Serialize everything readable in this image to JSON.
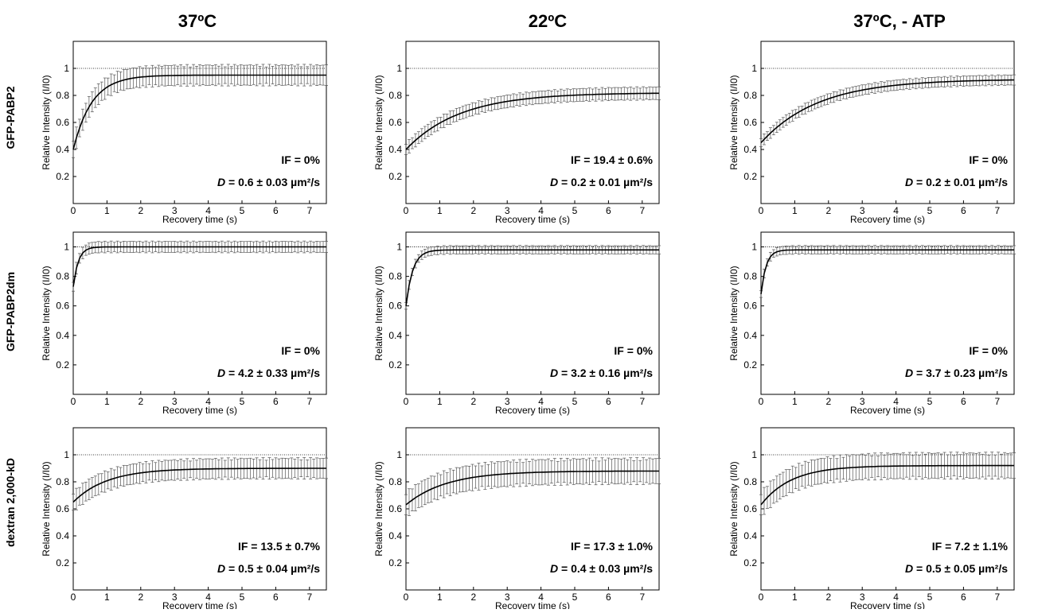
{
  "column_titles": [
    "37ºC",
    "22ºC",
    "37ºC, - ATP"
  ],
  "row_labels": [
    "GFP-PABP2",
    "GFP-PABP2dm",
    "dextran 2,000-kD"
  ],
  "colors": {
    "line": "#000000",
    "error_bar": "#555555",
    "reference_line": "#000000"
  },
  "chart_data": [
    {
      "type": "line",
      "row": 0,
      "col": 0,
      "xlabel": "Recovery time (s)",
      "ylabel": "Relative Intensity (I/I0)",
      "xlim": [
        0,
        7.5
      ],
      "ylim": [
        0,
        1.2
      ],
      "xticks": [
        "0",
        "1",
        "2",
        "3",
        "4",
        "5",
        "6",
        "7"
      ],
      "yticks": [
        "0.2",
        "0.4",
        "0.6",
        "0.8",
        "1"
      ],
      "reference_y": 1,
      "series": [
        {
          "start": 0.4,
          "plateau": 0.95,
          "tau": 0.55,
          "error": 0.08
        }
      ],
      "annotations": {
        "if_text": "IF = 0%",
        "d_prefix": "D",
        "d_text": " = 0.6 ± 0.03 µm²/s"
      }
    },
    {
      "type": "line",
      "row": 0,
      "col": 1,
      "xlabel": "Recovery time (s)",
      "ylabel": "Relative Intensity (I/I0)",
      "xlim": [
        0,
        7.5
      ],
      "ylim": [
        0,
        1.2
      ],
      "xticks": [
        "0",
        "1",
        "2",
        "3",
        "4",
        "5",
        "6",
        "7"
      ],
      "yticks": [
        "0.2",
        "0.4",
        "0.6",
        "0.8",
        "1"
      ],
      "reference_y": 1,
      "series": [
        {
          "start": 0.4,
          "plateau": 0.82,
          "tau": 1.6,
          "error": 0.05
        }
      ],
      "annotations": {
        "if_text": "IF = 19.4 ± 0.6%",
        "d_prefix": "D",
        "d_text": " = 0.2 ± 0.01 µm²/s"
      }
    },
    {
      "type": "line",
      "row": 0,
      "col": 2,
      "xlabel": "Recovery time (s)",
      "ylabel": "Relative Intensity (I/I0)",
      "xlim": [
        0,
        7.5
      ],
      "ylim": [
        0,
        1.2
      ],
      "xticks": [
        "0",
        "1",
        "2",
        "3",
        "4",
        "5",
        "6",
        "7"
      ],
      "yticks": [
        "0.2",
        "0.4",
        "0.6",
        "0.8",
        "1"
      ],
      "reference_y": 1,
      "series": [
        {
          "start": 0.45,
          "plateau": 0.92,
          "tau": 1.7,
          "error": 0.04
        }
      ],
      "annotations": {
        "if_text": "IF = 0%",
        "d_prefix": "D",
        "d_text": " = 0.2 ± 0.01 µm²/s"
      }
    },
    {
      "type": "line",
      "row": 1,
      "col": 0,
      "xlabel": "Recovery time (s)",
      "ylabel": "Relative Intensity (I/I0)",
      "xlim": [
        0,
        7.5
      ],
      "ylim": [
        0,
        1.1
      ],
      "xticks": [
        "0",
        "1",
        "2",
        "3",
        "4",
        "5",
        "6",
        "7"
      ],
      "yticks": [
        "0.2",
        "0.4",
        "0.6",
        "0.8",
        "1"
      ],
      "reference_y": 1,
      "series": [
        {
          "start": 0.73,
          "plateau": 1.0,
          "tau": 0.15,
          "error": 0.04
        }
      ],
      "annotations": {
        "if_text": "IF = 0%",
        "d_prefix": "D",
        "d_text": " = 4.2 ± 0.33 µm²/s"
      }
    },
    {
      "type": "line",
      "row": 1,
      "col": 1,
      "xlabel": "Recovery time (s)",
      "ylabel": "Relative Intensity (I/I0)",
      "xlim": [
        0,
        7.5
      ],
      "ylim": [
        0,
        1.1
      ],
      "xticks": [
        "0",
        "1",
        "2",
        "3",
        "4",
        "5",
        "6",
        "7"
      ],
      "yticks": [
        "0.2",
        "0.4",
        "0.6",
        "0.8",
        "1"
      ],
      "reference_y": 1,
      "series": [
        {
          "start": 0.6,
          "plateau": 0.98,
          "tau": 0.2,
          "error": 0.03
        }
      ],
      "annotations": {
        "if_text": "IF = 0%",
        "d_prefix": "D",
        "d_text": " = 3.2 ± 0.16 µm²/s"
      }
    },
    {
      "type": "line",
      "row": 1,
      "col": 2,
      "xlabel": "Recovery time (s)",
      "ylabel": "Relative Intensity (I/I0)",
      "xlim": [
        0,
        7.5
      ],
      "ylim": [
        0,
        1.1
      ],
      "xticks": [
        "0",
        "1",
        "2",
        "3",
        "4",
        "5",
        "6",
        "7"
      ],
      "yticks": [
        "0.2",
        "0.4",
        "0.6",
        "0.8",
        "1"
      ],
      "reference_y": 1,
      "series": [
        {
          "start": 0.68,
          "plateau": 0.98,
          "tau": 0.15,
          "error": 0.03
        }
      ],
      "annotations": {
        "if_text": "IF = 0%",
        "d_prefix": "D",
        "d_text": " = 3.7 ± 0.23 µm²/s"
      }
    },
    {
      "type": "line",
      "row": 2,
      "col": 0,
      "xlabel": "Recovery time (s)",
      "ylabel": "Relative Intensity (I/I0)",
      "xlim": [
        0,
        7.5
      ],
      "ylim": [
        0,
        1.2
      ],
      "xticks": [
        "0",
        "1",
        "2",
        "3",
        "4",
        "5",
        "6",
        "7"
      ],
      "yticks": [
        "0.2",
        "0.4",
        "0.6",
        "0.8",
        "1"
      ],
      "reference_y": 1,
      "series": [
        {
          "start": 0.65,
          "plateau": 0.9,
          "tau": 1.0,
          "error": 0.08
        }
      ],
      "annotations": {
        "if_text": "IF = 13.5 ± 0.7%",
        "d_prefix": "D",
        "d_text": " = 0.5 ± 0.04 µm²/s"
      }
    },
    {
      "type": "line",
      "row": 2,
      "col": 1,
      "xlabel": "Recovery time (s)",
      "ylabel": "Relative Intensity (I/I0)",
      "xlim": [
        0,
        7.5
      ],
      "ylim": [
        0,
        1.2
      ],
      "xticks": [
        "0",
        "1",
        "2",
        "3",
        "4",
        "5",
        "6",
        "7"
      ],
      "yticks": [
        "0.2",
        "0.4",
        "0.6",
        "0.8",
        "1"
      ],
      "reference_y": 1,
      "series": [
        {
          "start": 0.63,
          "plateau": 0.88,
          "tau": 1.2,
          "error": 0.1
        }
      ],
      "annotations": {
        "if_text": "IF = 17.3 ± 1.0%",
        "d_prefix": "D",
        "d_text": " = 0.4 ± 0.03 µm²/s"
      }
    },
    {
      "type": "line",
      "row": 2,
      "col": 2,
      "xlabel": "Recovery time (s)",
      "ylabel": "Relative Intensity (I/I0)",
      "xlim": [
        0,
        7.5
      ],
      "ylim": [
        0,
        1.2
      ],
      "xticks": [
        "0",
        "1",
        "2",
        "3",
        "4",
        "5",
        "6",
        "7"
      ],
      "yticks": [
        "0.2",
        "0.4",
        "0.6",
        "0.8",
        "1"
      ],
      "reference_y": 1,
      "series": [
        {
          "start": 0.63,
          "plateau": 0.92,
          "tau": 0.9,
          "error": 0.1
        }
      ],
      "annotations": {
        "if_text": "IF = 7.2 ± 1.1%",
        "d_prefix": "D",
        "d_text": " = 0.5 ± 0.05 µm²/s"
      }
    }
  ]
}
